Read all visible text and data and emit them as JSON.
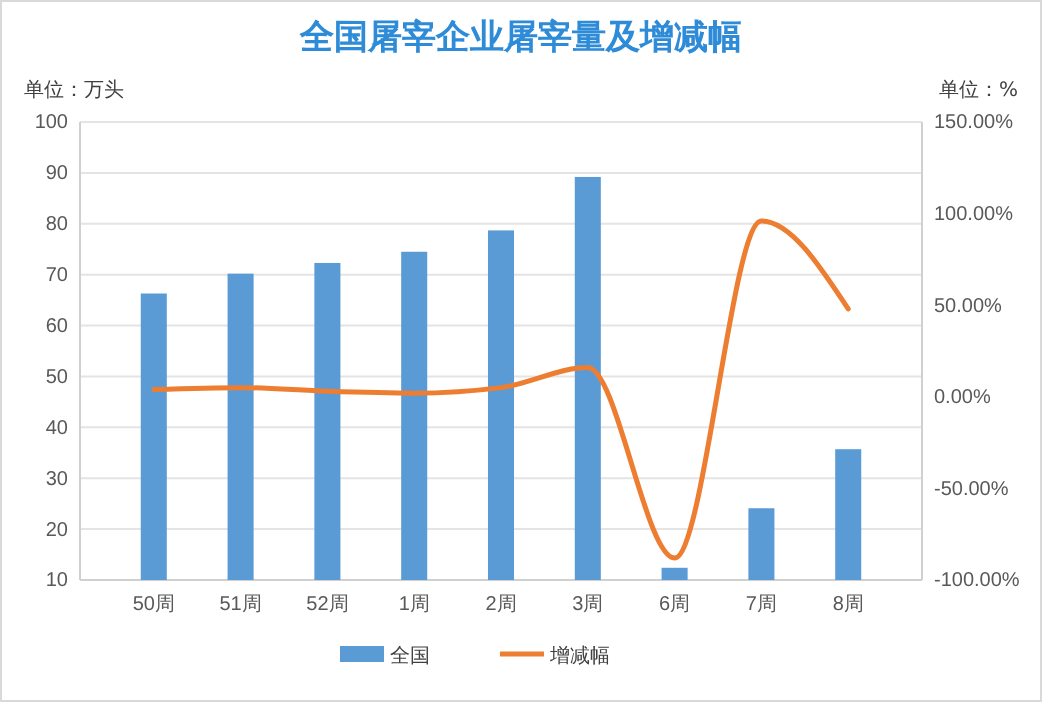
{
  "chart_data": {
    "type": "bar",
    "title": "全国屠宰企业屠宰量及增减幅",
    "ylabel": "单位：万头",
    "y2label": "单位：%",
    "categories": [
      "50周",
      "51周",
      "52周",
      "1周",
      "2周",
      "3周",
      "6周",
      "7周",
      "8周"
    ],
    "series": [
      {
        "name": "全国",
        "color": "#5b9bd5",
        "values": [
          66.3,
          70.2,
          72.3,
          74.5,
          78.7,
          89.2,
          12.4,
          24.1,
          35.7
        ]
      },
      {
        "name": "增减幅",
        "type": "line",
        "axis": "y2",
        "color": "#ed7d31",
        "line_style": "solid",
        "values": [
          4,
          5,
          3,
          2,
          5,
          16,
          -88,
          96,
          48
        ]
      }
    ],
    "ylim": [
      10,
      100
    ],
    "yticks": [
      10,
      20,
      30,
      40,
      50,
      60,
      70,
      80,
      90,
      100
    ],
    "y2lim": [
      -100,
      150
    ],
    "y2ticks": [
      {
        "value": -100,
        "label": "-100.00%"
      },
      {
        "value": -50,
        "label": "-50.00%"
      },
      {
        "value": 0,
        "label": "0.00%"
      },
      {
        "value": 50,
        "label": "50.00%"
      },
      {
        "value": 100,
        "label": "100.00%"
      },
      {
        "value": 150,
        "label": "150.00%"
      }
    ],
    "grid": "y",
    "legend": "bottom",
    "marker": "none"
  }
}
